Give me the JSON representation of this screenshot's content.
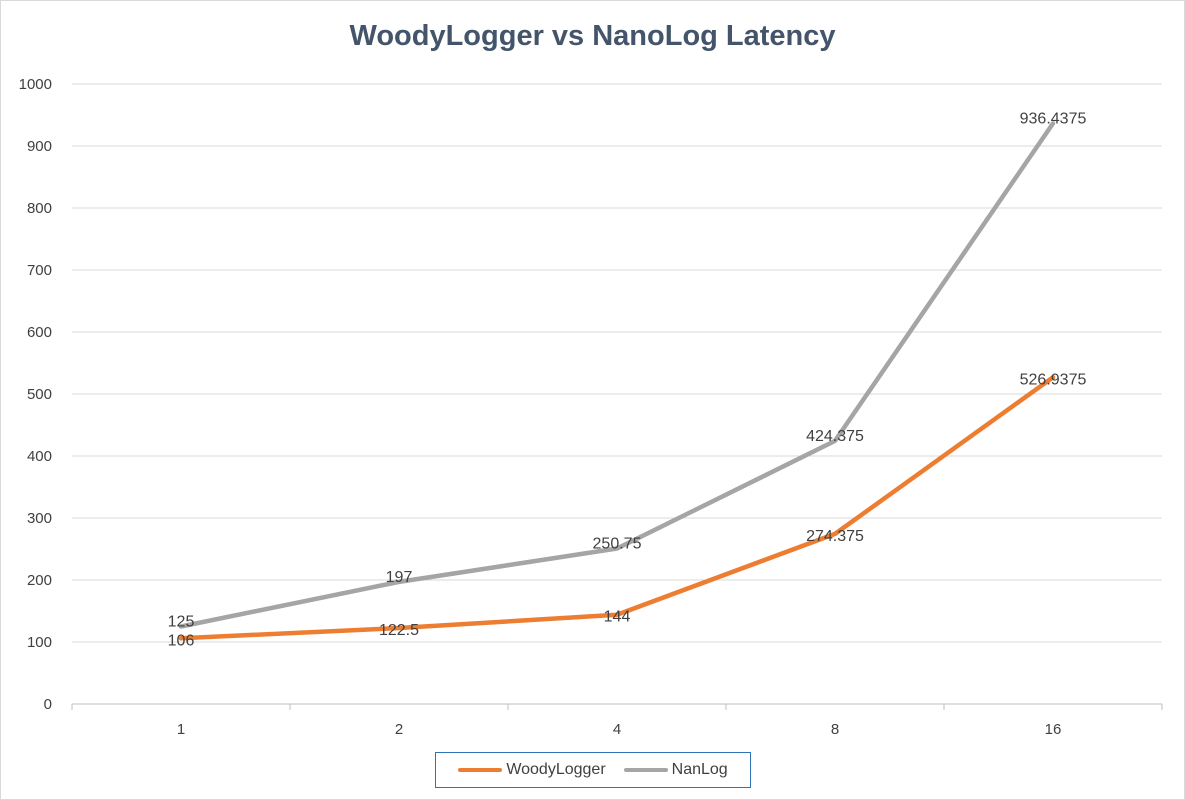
{
  "chart_data": {
    "type": "line",
    "title": "WoodyLogger vs NanoLog Latency",
    "xlabel": "",
    "ylabel": "",
    "categories": [
      "1",
      "2",
      "4",
      "8",
      "16"
    ],
    "ylim": [
      0,
      1000
    ],
    "yticks": [
      0,
      100,
      200,
      300,
      400,
      500,
      600,
      700,
      800,
      900,
      1000
    ],
    "grid": true,
    "legend_position": "bottom",
    "series": [
      {
        "name": "WoodyLogger",
        "color": "#ed7d31",
        "values": [
          106,
          122.5,
          144,
          274.375,
          526.9375
        ],
        "labels": [
          "106",
          "122.5",
          "144",
          "274.375",
          "526.9375"
        ]
      },
      {
        "name": "NanLog",
        "color": "#a5a5a5",
        "values": [
          125,
          197,
          250.75,
          424.375,
          936.4375
        ],
        "labels": [
          "125",
          "197",
          "250.75",
          "424.375",
          "936.4375"
        ]
      }
    ]
  }
}
